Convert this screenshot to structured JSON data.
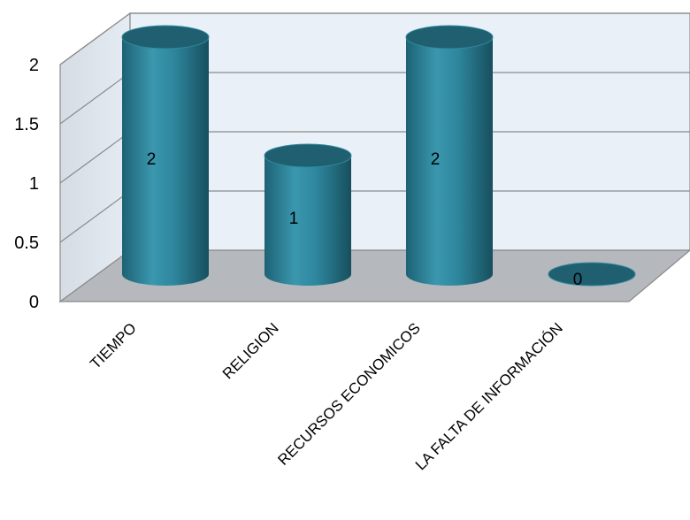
{
  "chart_data": {
    "type": "bar",
    "style": "3d-cylinder",
    "categories": [
      "TIEMPO",
      "RELIGION",
      "RECURSOS ECONOMICOS",
      "LA FALTA DE INFORMACIÓN"
    ],
    "values": [
      2,
      1,
      2,
      0
    ],
    "data_labels": [
      "2",
      "1",
      "2",
      "0"
    ],
    "y_ticks": [
      "0",
      "0.5",
      "1",
      "1.5",
      "2"
    ],
    "ylim": [
      0,
      2.5
    ],
    "grid": true,
    "bar_color": "#2b7f96",
    "wall_color": "#e9f0f8",
    "floor_color": "#b5b8bc"
  }
}
